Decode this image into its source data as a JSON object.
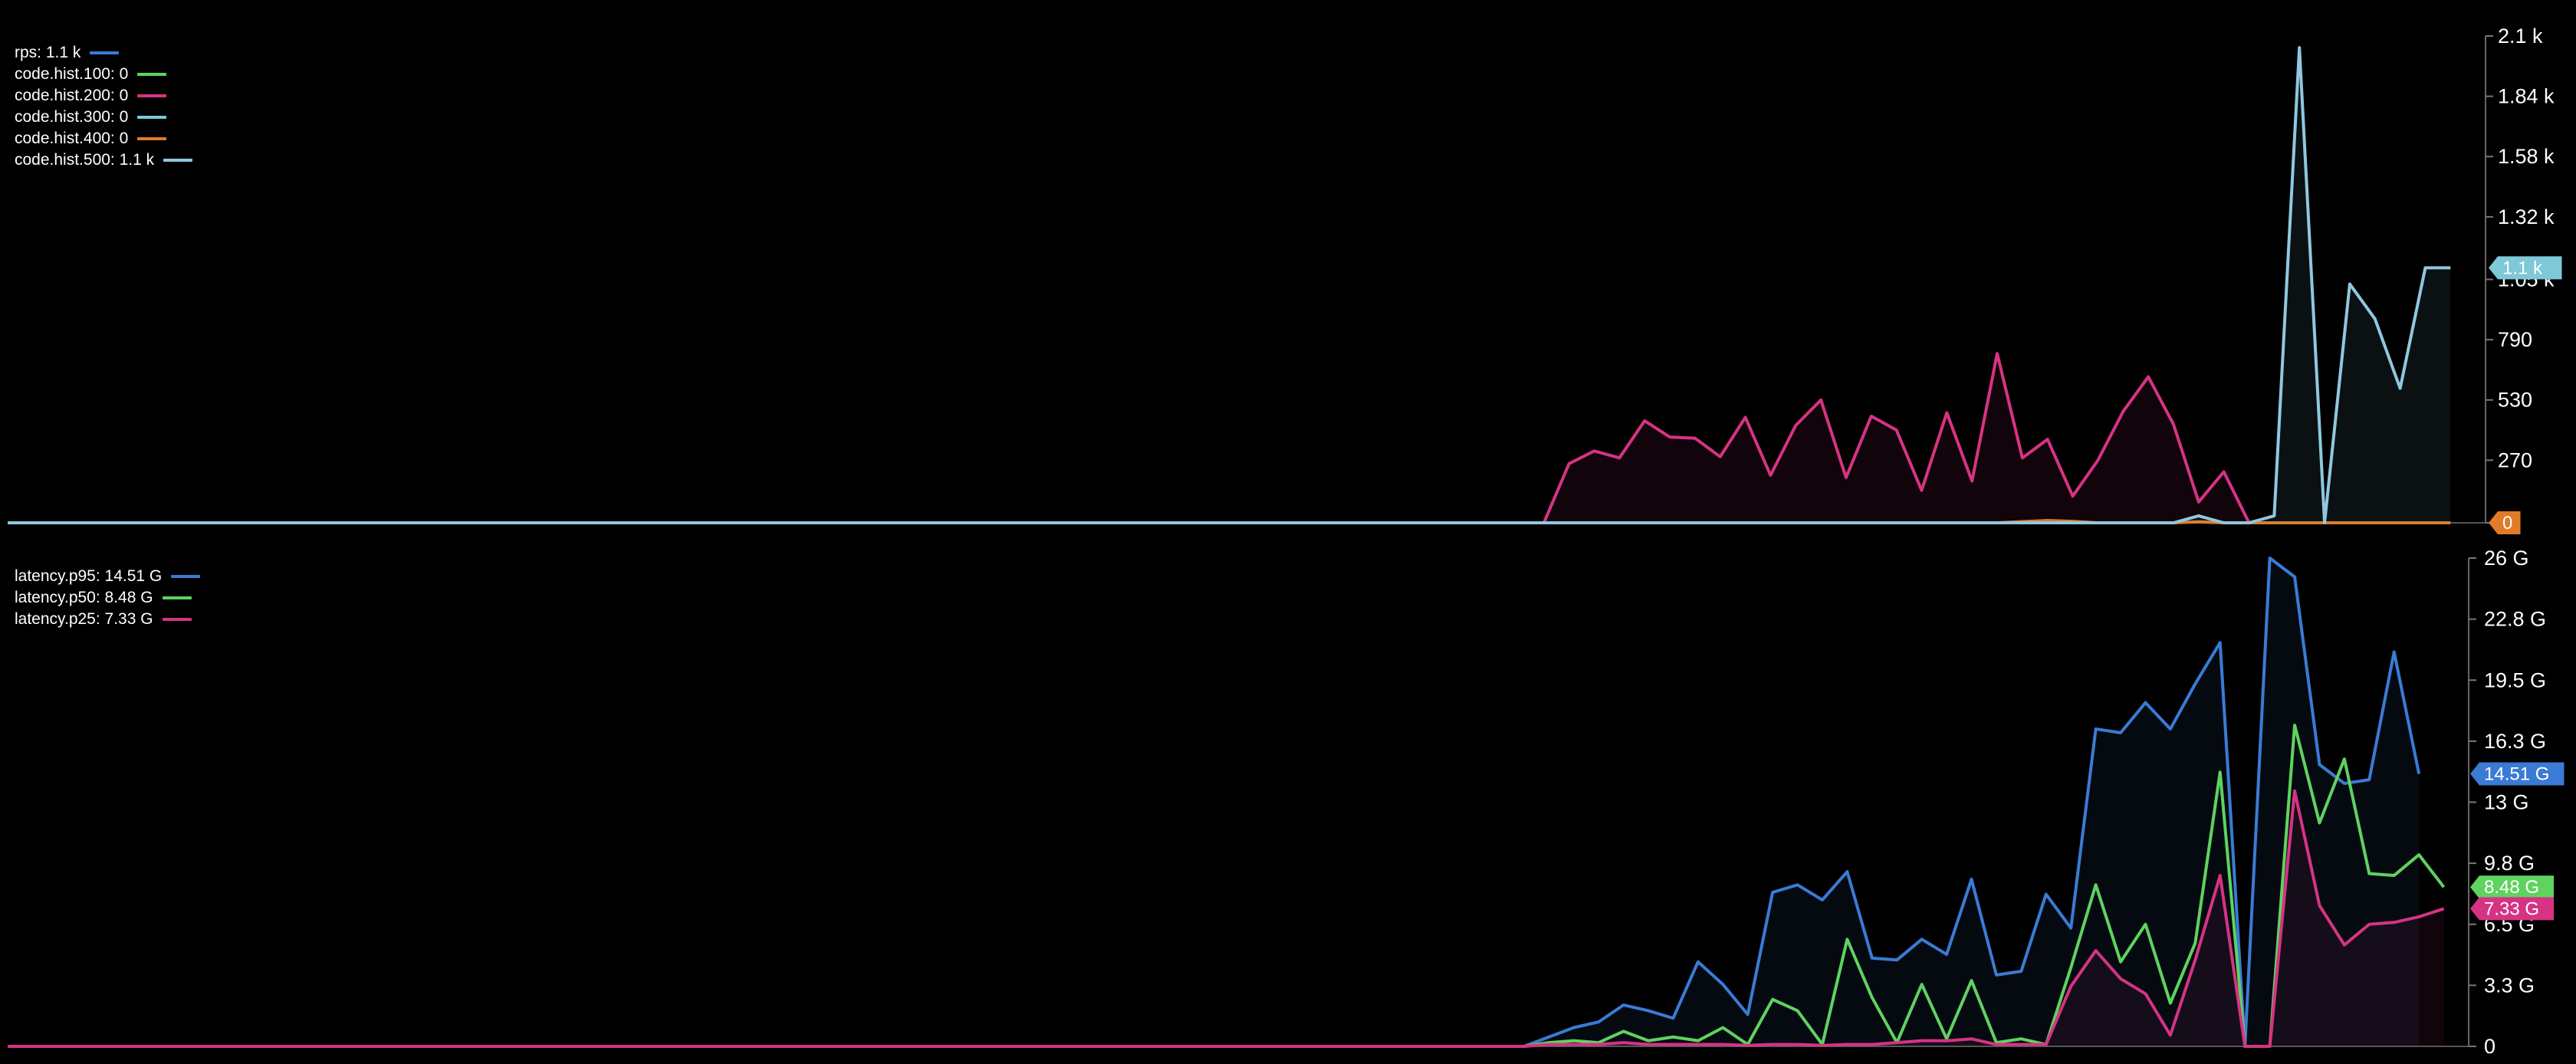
{
  "chart_data": [
    {
      "type": "area",
      "x_count": 100,
      "ylim": [
        0,
        2100
      ],
      "y_ticks": [
        "0",
        "270",
        "530",
        "790",
        "1.05 k",
        "1.32 k",
        "1.58 k",
        "1.84 k",
        "2.1 k"
      ],
      "y_tick_values": [
        0,
        270,
        530,
        790,
        1050,
        1320,
        1580,
        1840,
        2100
      ],
      "legend": [
        {
          "label": "rps: 1.1 k",
          "color": "#3a7bd5"
        },
        {
          "label": "code.hist.100: 0",
          "color": "#5fd35f"
        },
        {
          "label": "code.hist.200: 0",
          "color": "#d63384"
        },
        {
          "label": "code.hist.300: 0",
          "color": "#7ec8d8"
        },
        {
          "label": "code.hist.400: 0",
          "color": "#e07b28"
        },
        {
          "label": "code.hist.500: 1.1 k",
          "color": "#8fc8e0"
        }
      ],
      "series": [
        {
          "name": "code.hist.200",
          "color": "#d63384",
          "fill": true,
          "points": [
            [
              61,
              0
            ],
            [
              62,
              255
            ],
            [
              63,
              310
            ],
            [
              64,
              280
            ],
            [
              65,
              440
            ],
            [
              66,
              370
            ],
            [
              67,
              365
            ],
            [
              68,
              285
            ],
            [
              69,
              455
            ],
            [
              70,
              205
            ],
            [
              71,
              420
            ],
            [
              72,
              530
            ],
            [
              73,
              195
            ],
            [
              74,
              460
            ],
            [
              75,
              400
            ],
            [
              76,
              140
            ],
            [
              77,
              475
            ],
            [
              78,
              180
            ],
            [
              79,
              730
            ],
            [
              80,
              280
            ],
            [
              81,
              360
            ],
            [
              82,
              115
            ],
            [
              83,
              270
            ],
            [
              84,
              480
            ],
            [
              85,
              630
            ],
            [
              86,
              425
            ],
            [
              87,
              90
            ],
            [
              88,
              220
            ],
            [
              89,
              0
            ]
          ]
        },
        {
          "name": "code.hist.400",
          "color": "#e07b28",
          "fill": false,
          "points": [
            [
              0,
              0
            ],
            [
              79,
              0
            ],
            [
              80,
              5
            ],
            [
              81,
              10
            ],
            [
              82,
              6
            ],
            [
              83,
              0
            ],
            [
              86,
              0
            ],
            [
              87,
              4
            ],
            [
              88,
              0
            ],
            [
              97,
              0
            ]
          ]
        },
        {
          "name": "code.hist.500",
          "color": "#8fc8e0",
          "fill": true,
          "points": [
            [
              0,
              0
            ],
            [
              86,
              0
            ],
            [
              87,
              30
            ],
            [
              88,
              0
            ],
            [
              89,
              0
            ],
            [
              90,
              30
            ],
            [
              91,
              2050
            ],
            [
              92,
              0
            ],
            [
              93,
              1030
            ],
            [
              94,
              880
            ],
            [
              95,
              580
            ],
            [
              96,
              1100
            ],
            [
              97,
              1100
            ]
          ]
        }
      ],
      "last_value_badges": [
        {
          "label": "1.1 k",
          "value": 1100,
          "color": "#7ec8d8"
        },
        {
          "label": "0",
          "value": 0,
          "color": "#e07b28"
        }
      ]
    },
    {
      "type": "area",
      "x_count": 100,
      "ylim": [
        0,
        26
      ],
      "y_ticks": [
        "0",
        "3.3 G",
        "6.5 G",
        "9.8 G",
        "13 G",
        "16.3 G",
        "19.5 G",
        "22.8 G",
        "26 G"
      ],
      "y_tick_values": [
        0,
        3.25,
        6.5,
        9.75,
        13,
        16.25,
        19.5,
        22.75,
        26
      ],
      "legend": [
        {
          "label": "latency.p95: 14.51 G",
          "color": "#3a7bd5"
        },
        {
          "label": "latency.p50: 8.48 G",
          "color": "#5fd35f"
        },
        {
          "label": "latency.p25: 7.33 G",
          "color": "#d63384"
        }
      ],
      "series": [
        {
          "name": "latency.p95",
          "color": "#3a7bd5",
          "fill": true,
          "points": [
            [
              0,
              0
            ],
            [
              61,
              0
            ],
            [
              62,
              0.5
            ],
            [
              63,
              1.0
            ],
            [
              64,
              1.3
            ],
            [
              65,
              2.2
            ],
            [
              66,
              1.9
            ],
            [
              67,
              1.5
            ],
            [
              68,
              4.5
            ],
            [
              69,
              3.3
            ],
            [
              70,
              1.7
            ],
            [
              71,
              8.2
            ],
            [
              72,
              8.6
            ],
            [
              73,
              7.8
            ],
            [
              74,
              9.3
            ],
            [
              75,
              4.7
            ],
            [
              76,
              4.6
            ],
            [
              77,
              5.7
            ],
            [
              78,
              4.9
            ],
            [
              79,
              8.9
            ],
            [
              80,
              3.8
            ],
            [
              81,
              4.0
            ],
            [
              82,
              8.1
            ],
            [
              83,
              6.3
            ],
            [
              84,
              16.9
            ],
            [
              85,
              16.7
            ],
            [
              86,
              18.3
            ],
            [
              87,
              16.9
            ],
            [
              88,
              19.3
            ],
            [
              89,
              21.5
            ],
            [
              90,
              0
            ],
            [
              91,
              26.0
            ],
            [
              92,
              25.0
            ],
            [
              93,
              15.0
            ],
            [
              94,
              14.0
            ],
            [
              95,
              14.2
            ],
            [
              96,
              21.0
            ],
            [
              97,
              14.51
            ]
          ]
        },
        {
          "name": "latency.p50",
          "color": "#5fd35f",
          "fill": false,
          "points": [
            [
              0,
              0
            ],
            [
              61,
              0
            ],
            [
              62,
              0.2
            ],
            [
              63,
              0.3
            ],
            [
              64,
              0.2
            ],
            [
              65,
              0.8
            ],
            [
              66,
              0.3
            ],
            [
              67,
              0.5
            ],
            [
              68,
              0.3
            ],
            [
              69,
              1.0
            ],
            [
              70,
              0.1
            ],
            [
              71,
              2.5
            ],
            [
              72,
              1.9
            ],
            [
              73,
              0.1
            ],
            [
              74,
              5.7
            ],
            [
              75,
              2.6
            ],
            [
              76,
              0.2
            ],
            [
              77,
              3.3
            ],
            [
              78,
              0.4
            ],
            [
              79,
              3.5
            ],
            [
              80,
              0.2
            ],
            [
              81,
              0.4
            ],
            [
              82,
              0.1
            ],
            [
              83,
              4.2
            ],
            [
              84,
              8.6
            ],
            [
              85,
              4.5
            ],
            [
              86,
              6.5
            ],
            [
              87,
              2.3
            ],
            [
              88,
              5.5
            ],
            [
              89,
              14.6
            ],
            [
              90,
              0
            ],
            [
              91,
              0
            ],
            [
              92,
              17.1
            ],
            [
              93,
              11.9
            ],
            [
              94,
              15.3
            ],
            [
              95,
              9.2
            ],
            [
              96,
              9.1
            ],
            [
              97,
              10.2
            ],
            [
              98,
              8.48
            ]
          ]
        },
        {
          "name": "latency.p25",
          "color": "#d63384",
          "fill": true,
          "points": [
            [
              0,
              0
            ],
            [
              61,
              0
            ],
            [
              62,
              0.1
            ],
            [
              63,
              0.1
            ],
            [
              64,
              0.1
            ],
            [
              65,
              0.2
            ],
            [
              66,
              0.1
            ],
            [
              67,
              0.1
            ],
            [
              68,
              0.1
            ],
            [
              69,
              0.1
            ],
            [
              70,
              0.05
            ],
            [
              71,
              0.1
            ],
            [
              72,
              0.1
            ],
            [
              73,
              0.05
            ],
            [
              74,
              0.1
            ],
            [
              75,
              0.1
            ],
            [
              76,
              0.2
            ],
            [
              77,
              0.3
            ],
            [
              78,
              0.3
            ],
            [
              79,
              0.4
            ],
            [
              80,
              0.1
            ],
            [
              81,
              0.1
            ],
            [
              82,
              0.1
            ],
            [
              83,
              3.2
            ],
            [
              84,
              5.1
            ],
            [
              85,
              3.6
            ],
            [
              86,
              2.8
            ],
            [
              87,
              0.6
            ],
            [
              88,
              4.6
            ],
            [
              89,
              9.1
            ],
            [
              90,
              0
            ],
            [
              91,
              0
            ],
            [
              92,
              13.6
            ],
            [
              93,
              7.5
            ],
            [
              94,
              5.4
            ],
            [
              95,
              6.5
            ],
            [
              96,
              6.6
            ],
            [
              97,
              6.9
            ],
            [
              98,
              7.33
            ]
          ]
        }
      ],
      "last_value_badges": [
        {
          "label": "14.51 G",
          "value": 14.51,
          "color": "#3a7bd5"
        },
        {
          "label": "8.48 G",
          "value": 8.48,
          "color": "#5fd35f"
        },
        {
          "label": "7.33 G",
          "value": 7.33,
          "color": "#d63384"
        }
      ]
    }
  ]
}
